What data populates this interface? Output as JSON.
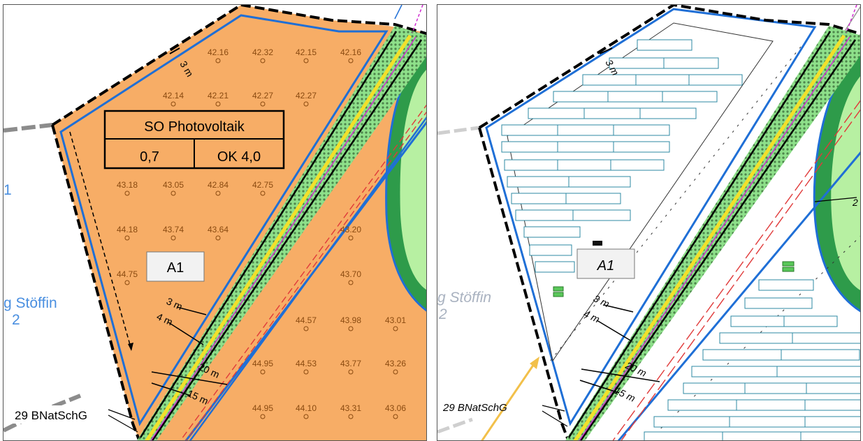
{
  "colors": {
    "zone_fill": "#f7ad66",
    "boundary_blue": "#1f6fd6",
    "hatch_green": "#8ee08a",
    "road_yellow": "#f2e02a",
    "magenta": "#d02bd0",
    "red_dash": "#e03a3a",
    "dark_green": "#2e9b4a",
    "light_green": "#b7f0a2",
    "module_teal": "#2c8aa3",
    "label_blue": "#4a8fe0",
    "label_blue_faded": "#a9b2c0"
  },
  "left_panel": {
    "zone_table": {
      "row1": "SO Photovoltaik",
      "row2_left": "0,7",
      "row2_right": "OK 4,0"
    },
    "area_label": "A1",
    "place_label_1": "g Stöffin",
    "place_label_2": "2",
    "edge_label_1": "1",
    "law_label": "29 BNatSchG",
    "dim_3m_top": "3 m",
    "dim_3m": "3 m",
    "dim_4m": "4 m",
    "dim_20m": "20 m",
    "dim_15m": "15 m",
    "elevations": [
      "42.16",
      "42.32",
      "42.15",
      "42.16",
      "42.14",
      "42.21",
      "42.27",
      "42.27",
      "43.18",
      "43.05",
      "42.84",
      "42.75",
      "44.18",
      "43.74",
      "43.64",
      "43.20",
      "44.75",
      "43.70",
      "44.57",
      "43.98",
      "43.01",
      "44.95",
      "44.53",
      "43.77",
      "43.26",
      "44.95",
      "44.10",
      "43.31",
      "43.06"
    ]
  },
  "right_panel": {
    "area_label": "A1",
    "place_label_1": "g Stöffin",
    "place_label_2": "2",
    "law_label": "29 BNatSchG",
    "dim_3m_top": "3 m",
    "dim_3m": "3 m",
    "dim_4m": "4 m",
    "dim_20m": "20 m",
    "dim_15m": "15 m",
    "edge_label_2": "2"
  }
}
